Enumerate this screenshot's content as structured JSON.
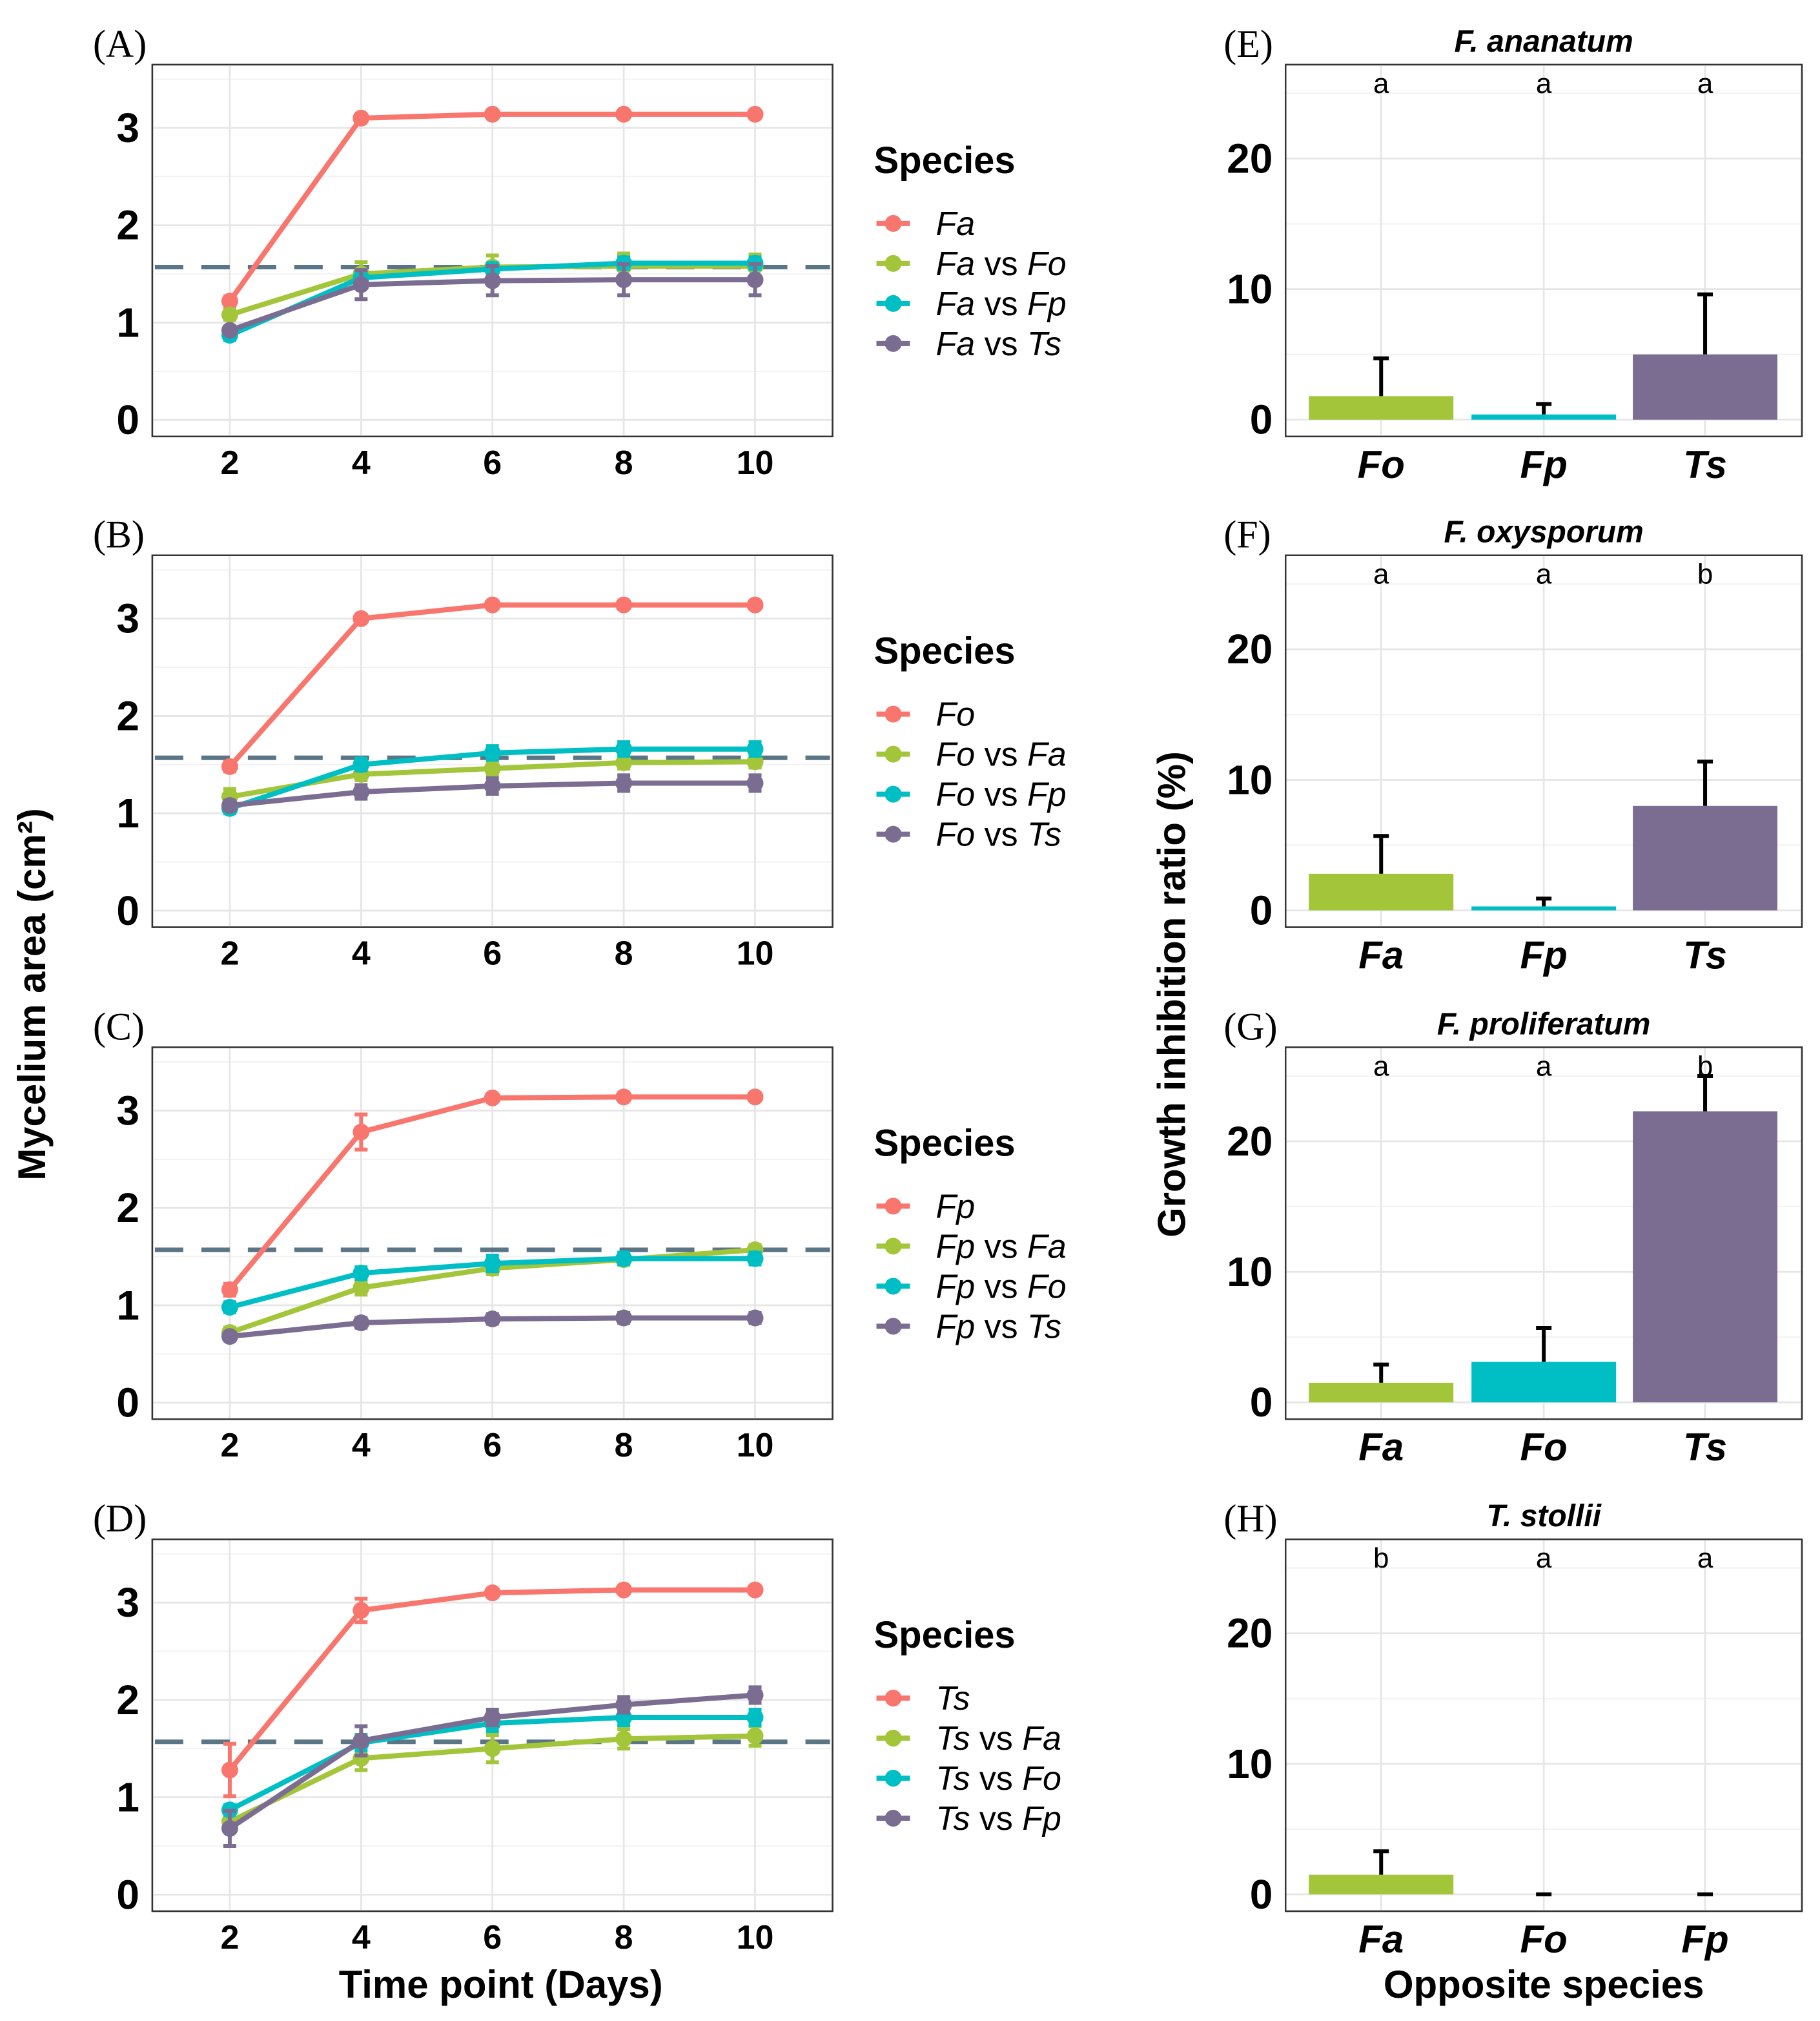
{
  "colors": {
    "red": "#F8766D",
    "green": "#A3C53A",
    "cyan": "#00BFC4",
    "purple": "#7B6D91",
    "dash": "#5A7585"
  },
  "chart_data": [
    {
      "type": "line",
      "panel": "(A)",
      "x": [
        2,
        4,
        6,
        8,
        10
      ],
      "xlim": [
        0.82,
        11.18
      ],
      "ylim": [
        -0.17,
        3.65
      ],
      "yticks": [
        0,
        1,
        2,
        3
      ],
      "reference_line": 1.57,
      "legend_title": "Species",
      "series": [
        {
          "name": "Fa",
          "values": [
            1.22,
            3.1,
            3.14,
            3.14,
            3.14
          ],
          "error": [
            0.05,
            0.02,
            0.02,
            0.02,
            0.02
          ]
        },
        {
          "name": "Fa vs Fo",
          "values": [
            1.08,
            1.5,
            1.57,
            1.58,
            1.58
          ],
          "error": [
            0.05,
            0.12,
            0.12,
            0.13,
            0.12
          ]
        },
        {
          "name": "Fa vs Fp",
          "values": [
            0.87,
            1.46,
            1.55,
            1.61,
            1.61
          ],
          "error": [
            0.05,
            0.05,
            0.06,
            0.06,
            0.06
          ]
        },
        {
          "name": "Fa vs Ts",
          "values": [
            0.92,
            1.39,
            1.43,
            1.44,
            1.44
          ],
          "error": [
            0.04,
            0.15,
            0.15,
            0.16,
            0.16
          ]
        }
      ]
    },
    {
      "type": "line",
      "panel": "(B)",
      "x": [
        2,
        4,
        6,
        8,
        10
      ],
      "xlim": [
        0.82,
        11.18
      ],
      "ylim": [
        -0.17,
        3.65
      ],
      "yticks": [
        0,
        1,
        2,
        3
      ],
      "reference_line": 1.57,
      "legend_title": "Species",
      "series": [
        {
          "name": "Fo",
          "values": [
            1.48,
            3.0,
            3.14,
            3.14,
            3.14
          ],
          "error": [
            0.05,
            0.04,
            0.02,
            0.02,
            0.02
          ]
        },
        {
          "name": "Fo vs Fa",
          "values": [
            1.17,
            1.4,
            1.46,
            1.52,
            1.53
          ],
          "error": [
            0.08,
            0.06,
            0.06,
            0.06,
            0.06
          ]
        },
        {
          "name": "Fo vs Fp",
          "values": [
            1.05,
            1.5,
            1.62,
            1.66,
            1.66
          ],
          "error": [
            0.05,
            0.06,
            0.07,
            0.07,
            0.07
          ]
        },
        {
          "name": "Fo vs Ts",
          "values": [
            1.08,
            1.22,
            1.28,
            1.31,
            1.31
          ],
          "error": [
            0.05,
            0.07,
            0.08,
            0.08,
            0.08
          ]
        }
      ]
    },
    {
      "type": "line",
      "panel": "(C)",
      "x": [
        2,
        4,
        6,
        8,
        10
      ],
      "xlim": [
        0.82,
        11.18
      ],
      "ylim": [
        -0.17,
        3.65
      ],
      "yticks": [
        0,
        1,
        2,
        3
      ],
      "reference_line": 1.57,
      "legend_title": "Species",
      "series": [
        {
          "name": "Fp",
          "values": [
            1.16,
            2.78,
            3.13,
            3.14,
            3.14
          ],
          "error": [
            0.06,
            0.18,
            0.02,
            0.02,
            0.02
          ]
        },
        {
          "name": "Fp vs Fa",
          "values": [
            0.72,
            1.18,
            1.38,
            1.47,
            1.57
          ],
          "error": [
            0.05,
            0.07,
            0.06,
            0.05,
            0.05
          ]
        },
        {
          "name": "Fp vs Fo",
          "values": [
            0.98,
            1.33,
            1.43,
            1.48,
            1.48
          ],
          "error": [
            0.05,
            0.06,
            0.08,
            0.06,
            0.06
          ]
        },
        {
          "name": "Fp vs Ts",
          "values": [
            0.68,
            0.82,
            0.86,
            0.87,
            0.87
          ],
          "error": [
            0.04,
            0.05,
            0.05,
            0.05,
            0.05
          ]
        }
      ]
    },
    {
      "type": "line",
      "panel": "(D)",
      "x": [
        2,
        4,
        6,
        8,
        10
      ],
      "xlim": [
        0.82,
        11.18
      ],
      "ylim": [
        -0.17,
        3.65
      ],
      "yticks": [
        0,
        1,
        2,
        3
      ],
      "reference_line": 1.57,
      "legend_title": "Species",
      "series": [
        {
          "name": "Ts",
          "values": [
            1.28,
            2.92,
            3.1,
            3.13,
            3.13
          ],
          "error": [
            0.27,
            0.12,
            0.03,
            0.02,
            0.02
          ]
        },
        {
          "name": "Ts vs Fa",
          "values": [
            0.75,
            1.4,
            1.5,
            1.6,
            1.63
          ],
          "error": [
            0.06,
            0.12,
            0.14,
            0.1,
            0.1
          ]
        },
        {
          "name": "Ts vs Fo",
          "values": [
            0.87,
            1.56,
            1.76,
            1.82,
            1.82
          ],
          "error": [
            0.05,
            0.08,
            0.08,
            0.08,
            0.08
          ]
        },
        {
          "name": "Ts vs Fp",
          "values": [
            0.68,
            1.58,
            1.82,
            1.95,
            2.05
          ],
          "error": [
            0.18,
            0.15,
            0.08,
            0.08,
            0.08
          ]
        }
      ]
    },
    {
      "type": "bar",
      "panel": "(E)",
      "title": "F. ananatum",
      "categories": [
        "Fo",
        "Fp",
        "Ts"
      ],
      "values": [
        1.8,
        0.4,
        5.0
      ],
      "error_upper": [
        4.7,
        1.2,
        9.6
      ],
      "letters": [
        "a",
        "a",
        "a"
      ],
      "ylim": [
        -1.29,
        27.2
      ],
      "yticks": [
        0,
        10,
        20
      ]
    },
    {
      "type": "bar",
      "panel": "(F)",
      "title": "F. oxysporum",
      "categories": [
        "Fa",
        "Fp",
        "Ts"
      ],
      "values": [
        2.8,
        0.3,
        8.0
      ],
      "error_upper": [
        5.7,
        0.9,
        11.4
      ],
      "letters": [
        "a",
        "a",
        "b"
      ],
      "ylim": [
        -1.29,
        27.2
      ],
      "yticks": [
        0,
        10,
        20
      ]
    },
    {
      "type": "bar",
      "panel": "(G)",
      "title": "F. proliferatum",
      "categories": [
        "Fa",
        "Fo",
        "Ts"
      ],
      "values": [
        1.5,
        3.1,
        22.3
      ],
      "error_upper": [
        2.9,
        5.7,
        25.0
      ],
      "letters": [
        "a",
        "a",
        "b"
      ],
      "ylim": [
        -1.29,
        27.2
      ],
      "yticks": [
        0,
        10,
        20
      ]
    },
    {
      "type": "bar",
      "panel": "(H)",
      "title": "T. stollii",
      "categories": [
        "Fa",
        "Fo",
        "Fp"
      ],
      "values": [
        1.5,
        0,
        0
      ],
      "error_upper": [
        3.3,
        0,
        0
      ],
      "letters": [
        "b",
        "a",
        "a"
      ],
      "ylim": [
        -1.29,
        27.2
      ],
      "yticks": [
        0,
        10,
        20
      ]
    }
  ],
  "axes": {
    "line_ylabel": "Mycelium area (cm²)",
    "line_xlabel": "Time point (Days)",
    "bar_ylabel": "Growth inhibition ratio (%)",
    "bar_xlabel": "Opposite species"
  }
}
